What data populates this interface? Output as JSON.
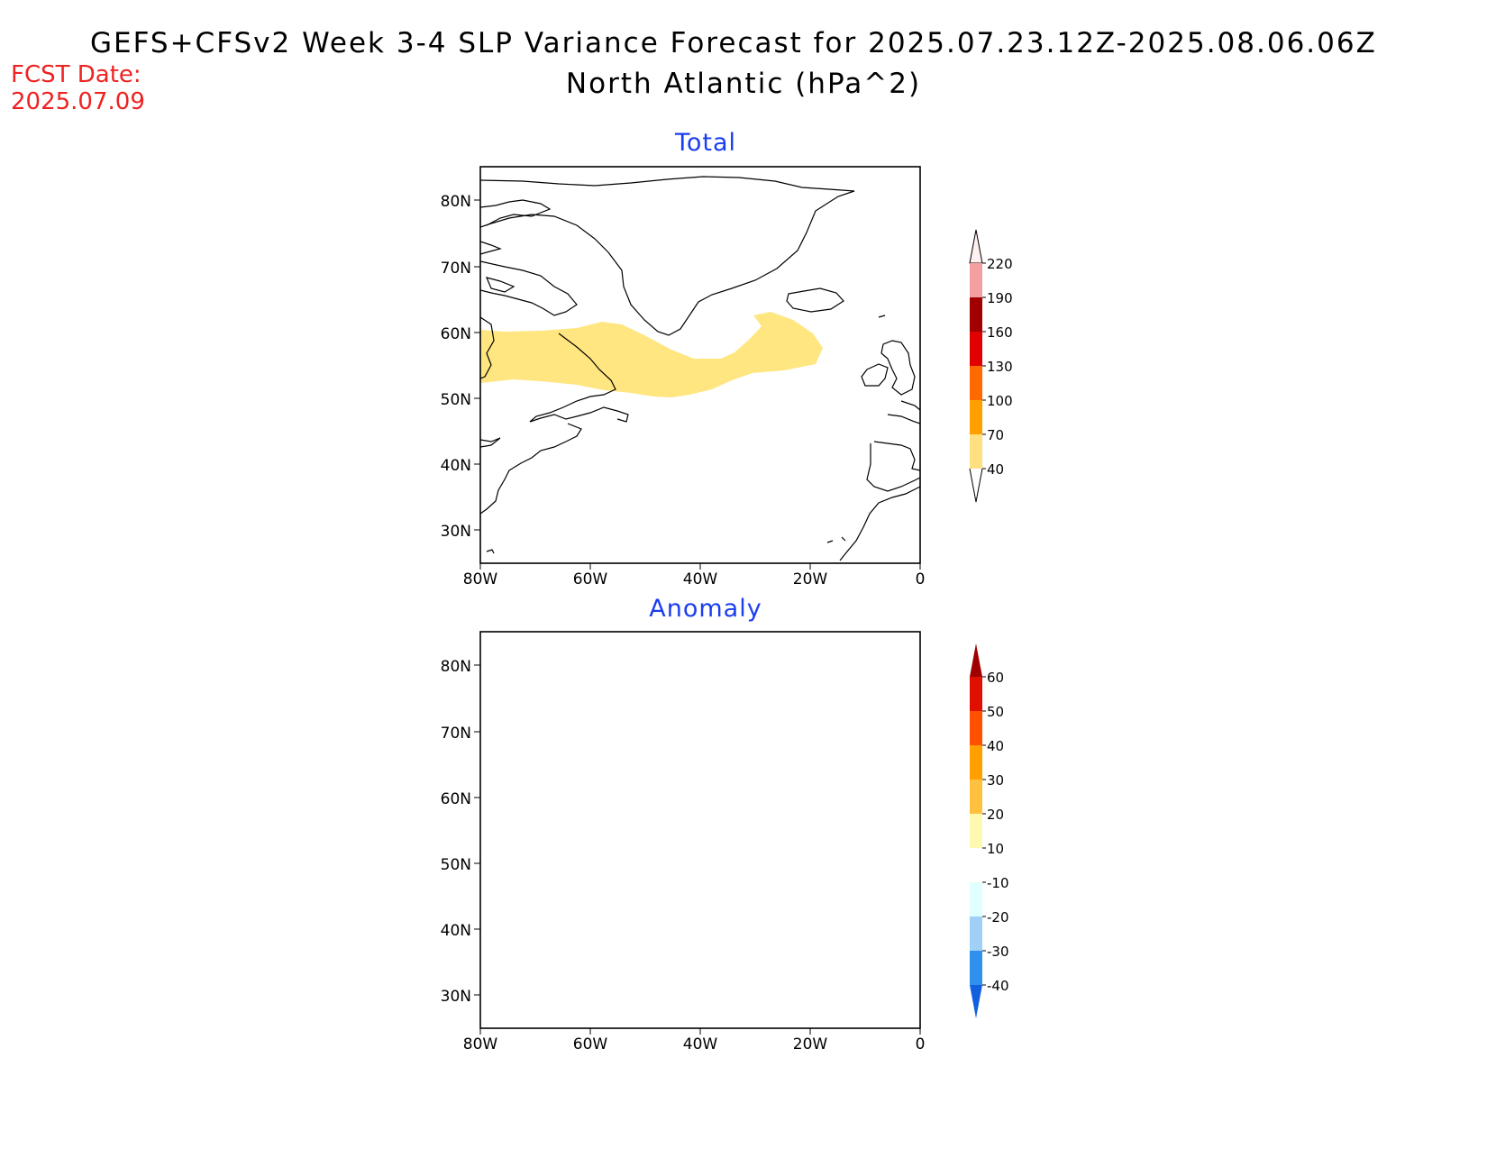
{
  "header": {
    "title": "GEFS+CFSv2 Week 3-4 SLP Variance Forecast for 2025.07.23.12Z-2025.08.06.06Z",
    "subtitle": "North Atlantic (hPa^2)",
    "fcst_label": "FCST Date:",
    "fcst_date": "2025.07.09"
  },
  "axes": {
    "lat_ticks": [
      "80N",
      "70N",
      "60N",
      "50N",
      "40N",
      "30N"
    ],
    "lon_ticks": [
      "80W",
      "60W",
      "40W",
      "20W",
      "0"
    ]
  },
  "panels": [
    {
      "title": "Total",
      "colorbar": {
        "labels": [
          "220",
          "190",
          "160",
          "130",
          "100",
          "70",
          "40"
        ],
        "colors": [
          "#fde0e0",
          "#f4a0a0",
          "#a00000",
          "#e00000",
          "#ff6a00",
          "#ffa000",
          "#ffe080"
        ]
      },
      "shaded_region": {
        "value_range": "40-70",
        "color": "#ffe680"
      }
    },
    {
      "title": "Anomaly",
      "colorbar": {
        "labels": [
          "60",
          "50",
          "40",
          "30",
          "20",
          "10",
          "-10",
          "-20",
          "-30",
          "-40"
        ],
        "colors": [
          "#a00000",
          "#e01000",
          "#ff5000",
          "#ffa000",
          "#ffc040",
          "#fff8b0",
          "#ffffff",
          "#e0ffff",
          "#a0d0f8",
          "#3090ee",
          "#1060e0"
        ]
      }
    }
  ]
}
